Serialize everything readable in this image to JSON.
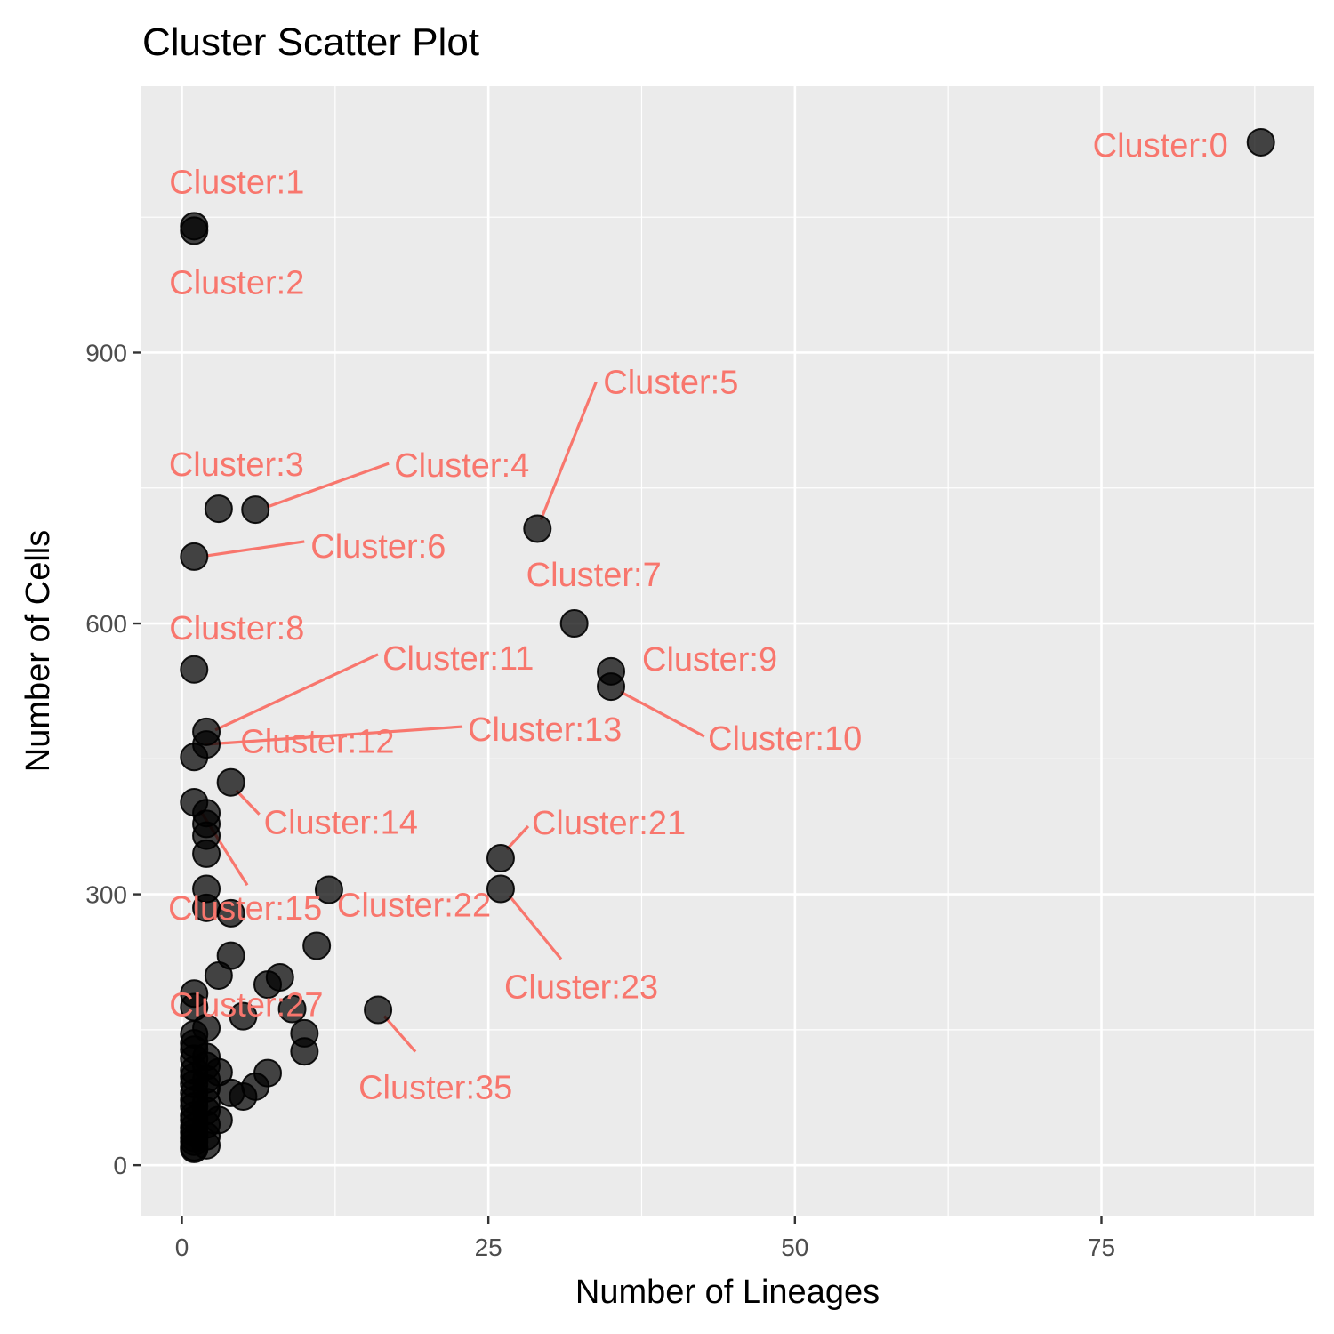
{
  "chart_data": {
    "type": "scatter",
    "title": "Cluster Scatter Plot",
    "xlabel": "Number of Lineages",
    "ylabel": "Number of Cells",
    "xlim": [
      -3.3,
      92.3
    ],
    "ylim": [
      -56,
      1195
    ],
    "x_ticks": [
      0,
      25,
      50,
      75
    ],
    "y_ticks": [
      0,
      300,
      600,
      900
    ],
    "grid": true,
    "panel_background": "#EBEBEB",
    "point_color": "#000000",
    "point_alpha": 0.72,
    "label_color": "#F8766D",
    "points": [
      {
        "x": 88,
        "y": 1133,
        "label": "Cluster:0"
      },
      {
        "x": 1,
        "y": 1040,
        "label": "Cluster:1"
      },
      {
        "x": 1,
        "y": 1035,
        "label": "Cluster:2"
      },
      {
        "x": 3,
        "y": 727,
        "label": "Cluster:3"
      },
      {
        "x": 6,
        "y": 726,
        "label": "Cluster:4"
      },
      {
        "x": 29,
        "y": 705,
        "label": "Cluster:5"
      },
      {
        "x": 1,
        "y": 674,
        "label": "Cluster:6"
      },
      {
        "x": 32,
        "y": 600,
        "label": "Cluster:7"
      },
      {
        "x": 1,
        "y": 549,
        "label": "Cluster:8"
      },
      {
        "x": 35,
        "y": 547,
        "label": "Cluster:9"
      },
      {
        "x": 35,
        "y": 530,
        "label": "Cluster:10"
      },
      {
        "x": 2,
        "y": 480,
        "label": "Cluster:11"
      },
      {
        "x": 1,
        "y": 452,
        "label": "Cluster:12"
      },
      {
        "x": 2,
        "y": 466,
        "label": "Cluster:13"
      },
      {
        "x": 4,
        "y": 424,
        "label": "Cluster:14"
      },
      {
        "x": 2,
        "y": 390,
        "label": "Cluster:15"
      },
      {
        "x": 12,
        "y": 305,
        "label": "Cluster:22"
      },
      {
        "x": 26,
        "y": 340,
        "label": "Cluster:21"
      },
      {
        "x": 26,
        "y": 306,
        "label": "Cluster:23"
      },
      {
        "x": 1,
        "y": 190,
        "label": "Cluster:27"
      },
      {
        "x": 16,
        "y": 172,
        "label": "Cluster:35"
      },
      {
        "x": 1,
        "y": 402
      },
      {
        "x": 2,
        "y": 378
      },
      {
        "x": 2,
        "y": 365
      },
      {
        "x": 2,
        "y": 345
      },
      {
        "x": 2,
        "y": 306
      },
      {
        "x": 2,
        "y": 285
      },
      {
        "x": 4,
        "y": 279
      },
      {
        "x": 11,
        "y": 243
      },
      {
        "x": 4,
        "y": 232
      },
      {
        "x": 3,
        "y": 210
      },
      {
        "x": 8,
        "y": 208
      },
      {
        "x": 7,
        "y": 200
      },
      {
        "x": 9,
        "y": 173
      },
      {
        "x": 5,
        "y": 165
      },
      {
        "x": 10,
        "y": 146
      },
      {
        "x": 2,
        "y": 152
      },
      {
        "x": 1,
        "y": 175
      },
      {
        "x": 10,
        "y": 126
      },
      {
        "x": 1,
        "y": 145
      },
      {
        "x": 1,
        "y": 135
      },
      {
        "x": 1,
        "y": 128
      },
      {
        "x": 1,
        "y": 118
      },
      {
        "x": 2,
        "y": 120
      },
      {
        "x": 2,
        "y": 110
      },
      {
        "x": 1,
        "y": 105
      },
      {
        "x": 3,
        "y": 103
      },
      {
        "x": 7,
        "y": 102
      },
      {
        "x": 1,
        "y": 98
      },
      {
        "x": 2,
        "y": 95
      },
      {
        "x": 6,
        "y": 87
      },
      {
        "x": 1,
        "y": 90
      },
      {
        "x": 2,
        "y": 85
      },
      {
        "x": 4,
        "y": 80
      },
      {
        "x": 5,
        "y": 76
      },
      {
        "x": 1,
        "y": 80
      },
      {
        "x": 1,
        "y": 72
      },
      {
        "x": 2,
        "y": 70
      },
      {
        "x": 1,
        "y": 65
      },
      {
        "x": 2,
        "y": 60
      },
      {
        "x": 1,
        "y": 55
      },
      {
        "x": 3,
        "y": 50
      },
      {
        "x": 1,
        "y": 50
      },
      {
        "x": 2,
        "y": 45
      },
      {
        "x": 1,
        "y": 42
      },
      {
        "x": 1,
        "y": 36
      },
      {
        "x": 2,
        "y": 32
      },
      {
        "x": 1,
        "y": 30
      },
      {
        "x": 1,
        "y": 26
      },
      {
        "x": 2,
        "y": 22
      },
      {
        "x": 1,
        "y": 20
      },
      {
        "x": 1,
        "y": 18
      }
    ]
  }
}
